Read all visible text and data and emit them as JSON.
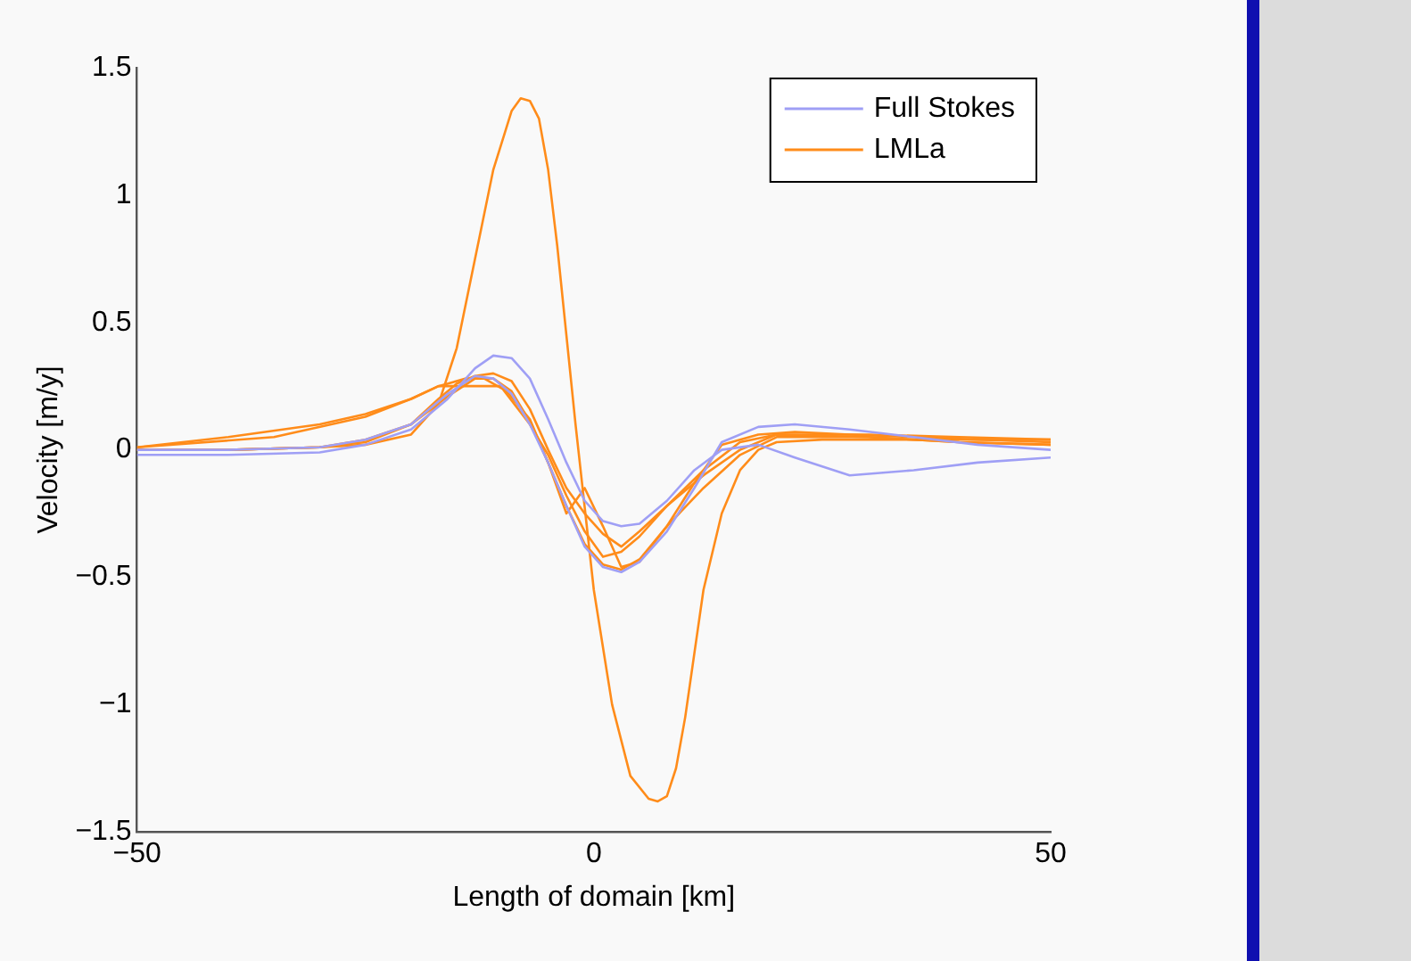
{
  "chart_data": {
    "type": "line",
    "xlabel": "Length of domain [km]",
    "ylabel": "Velocity [m/y]",
    "xlim": [
      -50,
      50
    ],
    "xticks": [
      {
        "value": -50,
        "label": "−50"
      },
      0,
      50
    ],
    "ylim": [
      -1.5,
      1.5
    ],
    "yticks": [
      {
        "value": -1.5,
        "label": "−1.5"
      },
      {
        "value": -1,
        "label": "−1"
      },
      {
        "value": -0.5,
        "label": "−0.5"
      },
      0,
      0.5,
      1,
      1.5
    ],
    "grid": false,
    "legend": "top right",
    "marker": "none",
    "line_style": "solid",
    "series": [
      {
        "name": "Full Stokes",
        "color": "#9f9ff5",
        "x": [
          -50,
          -40,
          -30,
          -25,
          -20,
          -16,
          -13,
          -11,
          -9,
          -7,
          -5,
          -3,
          -1,
          1,
          3,
          5,
          8,
          11,
          14,
          18,
          22,
          28,
          35,
          42,
          50
        ],
        "values": [
          -0.02,
          -0.02,
          -0.01,
          0.02,
          0.08,
          0.2,
          0.32,
          0.37,
          0.36,
          0.28,
          0.12,
          -0.05,
          -0.2,
          -0.28,
          -0.3,
          -0.29,
          -0.2,
          -0.08,
          0.0,
          0.02,
          -0.03,
          -0.1,
          -0.08,
          -0.05,
          -0.03
        ]
      },
      {
        "color": "#9f9ff5",
        "x": [
          -50,
          -40,
          -30,
          -25,
          -20,
          -16,
          -13,
          -11,
          -9,
          -7,
          -5,
          -3,
          -1,
          1,
          3,
          5,
          8,
          11,
          14,
          18,
          22,
          28,
          35,
          42,
          50
        ],
        "values": [
          0,
          0,
          0.01,
          0.04,
          0.1,
          0.22,
          0.29,
          0.28,
          0.22,
          0.1,
          -0.05,
          -0.22,
          -0.38,
          -0.46,
          -0.48,
          -0.44,
          -0.32,
          -0.15,
          0.03,
          0.09,
          0.1,
          0.08,
          0.05,
          0.02,
          0
        ]
      },
      {
        "name": "LMLa",
        "color": "#ff8c1a",
        "x": [
          -50,
          -40,
          -30,
          -25,
          -20,
          -17,
          -15,
          -13,
          -11,
          -9,
          -8,
          -7,
          -6,
          -5,
          -4,
          -3,
          -2,
          0,
          2,
          4,
          6,
          7,
          8,
          9,
          10,
          11,
          12,
          14,
          16,
          18,
          20,
          25,
          30,
          40,
          50
        ],
        "values": [
          0,
          0,
          0.01,
          0.02,
          0.06,
          0.18,
          0.4,
          0.75,
          1.1,
          1.33,
          1.38,
          1.37,
          1.3,
          1.1,
          0.8,
          0.45,
          0.1,
          -0.55,
          -1.0,
          -1.28,
          -1.37,
          -1.38,
          -1.36,
          -1.25,
          -1.05,
          -0.8,
          -0.55,
          -0.25,
          -0.08,
          0,
          0.03,
          0.04,
          0.04,
          0.04,
          0.04
        ]
      },
      {
        "color": "#ff8c1a",
        "x": [
          -50,
          -35,
          -25,
          -20,
          -17,
          -14,
          -10,
          -7,
          -5,
          -3,
          -1,
          1,
          3,
          5,
          8,
          12,
          16,
          20,
          30,
          40,
          50
        ],
        "values": [
          0.01,
          0.05,
          0.13,
          0.2,
          0.25,
          0.25,
          0.25,
          0.12,
          -0.05,
          -0.25,
          -0.15,
          -0.3,
          -0.46,
          -0.44,
          -0.3,
          -0.15,
          -0.02,
          0.05,
          0.05,
          0.03,
          0.02
        ]
      },
      {
        "color": "#ff8c1a",
        "x": [
          -50,
          -40,
          -30,
          -25,
          -20,
          -17,
          -14,
          -12,
          -10,
          -7,
          -5,
          -3,
          -1,
          1,
          3,
          5,
          8,
          12,
          16,
          20,
          30,
          40,
          50
        ],
        "values": [
          0.01,
          0.05,
          0.1,
          0.14,
          0.2,
          0.25,
          0.28,
          0.28,
          0.24,
          0.1,
          -0.02,
          -0.18,
          -0.32,
          -0.42,
          -0.4,
          -0.34,
          -0.22,
          -0.1,
          0.0,
          0.06,
          0.05,
          0.03,
          0.02
        ]
      },
      {
        "color": "#ff8c1a",
        "x": [
          -50,
          -40,
          -30,
          -25,
          -20,
          -17,
          -15,
          -13,
          -11,
          -9,
          -7,
          -5,
          -3,
          -1,
          1,
          3,
          5,
          8,
          12,
          16,
          20,
          30,
          40,
          50
        ],
        "values": [
          0,
          0,
          0.01,
          0.03,
          0.1,
          0.2,
          0.26,
          0.29,
          0.3,
          0.27,
          0.16,
          0.0,
          -0.15,
          -0.25,
          -0.33,
          -0.38,
          -0.32,
          -0.22,
          -0.08,
          0.03,
          0.06,
          0.06,
          0.05,
          0.04
        ]
      },
      {
        "color": "#ff8c1a",
        "x": [
          -50,
          -40,
          -30,
          -25,
          -20,
          -16,
          -13,
          -11,
          -9,
          -7,
          -5,
          -3,
          -1,
          1,
          3,
          5,
          8,
          11,
          14,
          18,
          22,
          28,
          35,
          42,
          50
        ],
        "values": [
          0,
          0,
          0.01,
          0.04,
          0.1,
          0.21,
          0.28,
          0.28,
          0.23,
          0.11,
          -0.05,
          -0.22,
          -0.37,
          -0.45,
          -0.47,
          -0.43,
          -0.3,
          -0.13,
          0.02,
          0.06,
          0.07,
          0.06,
          0.05,
          0.04,
          0.03
        ]
      }
    ]
  }
}
